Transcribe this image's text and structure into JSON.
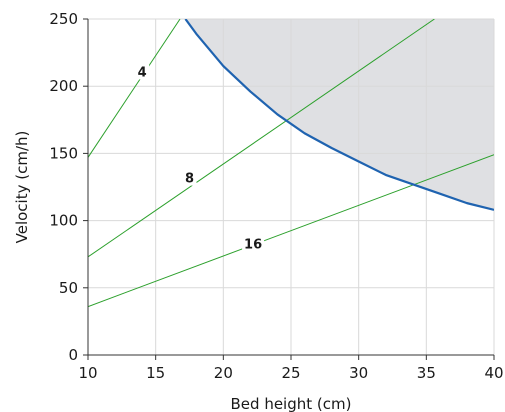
{
  "chart_data": {
    "type": "line",
    "xlabel": "Bed height (cm)",
    "ylabel": "Velocity (cm/h)",
    "xlim": [
      10,
      40
    ],
    "ylim": [
      0,
      250
    ],
    "x_ticks": [
      10,
      15,
      20,
      25,
      30,
      35,
      40
    ],
    "y_ticks": [
      0,
      50,
      100,
      150,
      200,
      250
    ],
    "grid": true,
    "colors": {
      "limit_curve": "#1f63b0",
      "residence_lines": "#2ca02c",
      "shaded_region": "#dfe0e3",
      "grid": "#d9d9d9",
      "axis": "#333333"
    },
    "limit_curve": {
      "x": [
        17.2,
        18,
        20,
        22,
        24,
        26,
        28,
        30,
        32,
        34,
        36,
        38,
        40
      ],
      "y": [
        250,
        239,
        215,
        196,
        179,
        165,
        154,
        144,
        134,
        127,
        120,
        113,
        108
      ]
    },
    "series": [
      {
        "label": "4",
        "label_at": [
          14,
          211
        ],
        "x": [
          10,
          16.8
        ],
        "y": [
          147,
          250
        ]
      },
      {
        "label": "8",
        "label_at": [
          17.5,
          132
        ],
        "x": [
          10,
          35.6
        ],
        "y": [
          73,
          250
        ]
      },
      {
        "label": "16",
        "label_at": [
          22.2,
          83
        ],
        "x": [
          10,
          40
        ],
        "y": [
          36,
          149
        ]
      }
    ]
  }
}
